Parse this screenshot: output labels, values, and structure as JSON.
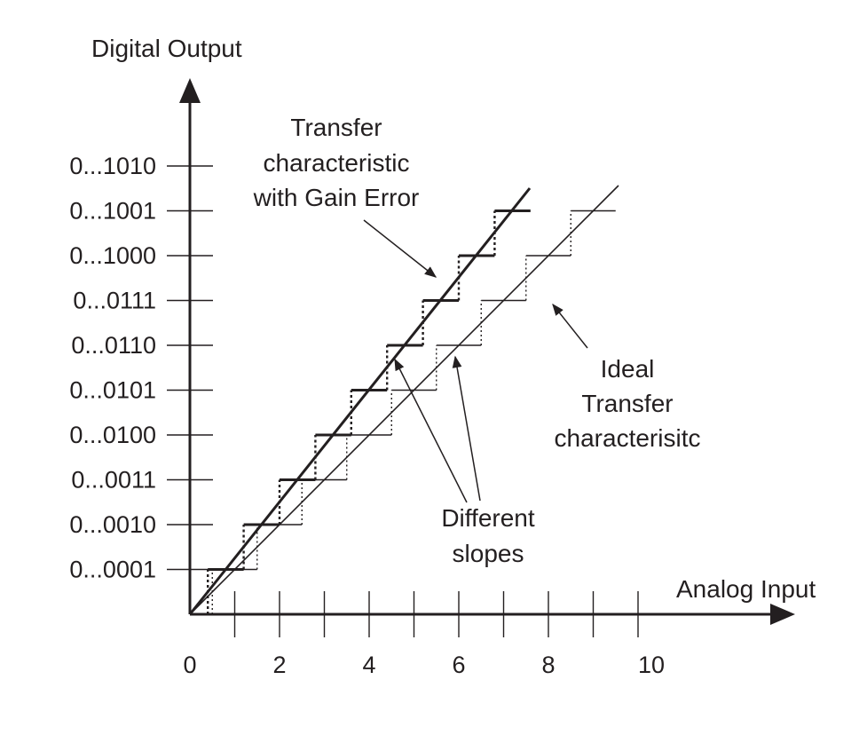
{
  "axes": {
    "y_title": "Digital Output",
    "x_title": "Analog Input",
    "y_codes": [
      "0...0001",
      "0...0010",
      "0...0011",
      "0...0100",
      "0...0101",
      "0...0110",
      "0...0111",
      "0...1000",
      "0...1001",
      "0...1010"
    ],
    "x_ticks": [
      0,
      1,
      2,
      3,
      4,
      5,
      6,
      7,
      8,
      9,
      10
    ],
    "x_tick_labels": [
      {
        "value": 0,
        "text": "0"
      },
      {
        "value": 2,
        "text": "2"
      },
      {
        "value": 4,
        "text": "4"
      },
      {
        "value": 6,
        "text": "6"
      },
      {
        "value": 8,
        "text": "8"
      },
      {
        "value": 10,
        "text": "10"
      }
    ],
    "x_range": [
      0,
      13
    ],
    "y_range": [
      0,
      10.5
    ]
  },
  "transfer": {
    "ideal_step_width": 1,
    "gain_error_step_width": 0.8,
    "steps": 9
  },
  "annotations": {
    "gain_error": [
      "Transfer",
      "characteristic",
      "with Gain Error"
    ],
    "ideal": [
      "Ideal",
      "Transfer",
      "characterisitc"
    ],
    "slopes": [
      "Different",
      "slopes"
    ]
  },
  "colors": {
    "ink": "#231f20",
    "background": "#ffffff"
  }
}
